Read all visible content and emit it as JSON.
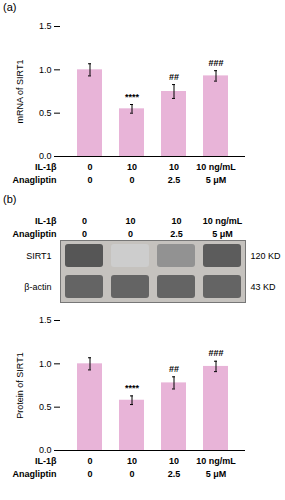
{
  "chart_data": [
    {
      "type": "bar",
      "title": "(a)",
      "ylabel": "mRNA of SIRT1",
      "category_rows": [
        {
          "name": "IL-1β",
          "labels": [
            "0",
            "10",
            "10",
            "10 ng/mL"
          ]
        },
        {
          "name": "Anagliptin",
          "labels": [
            "0",
            "0",
            "2.5",
            "5 μM"
          ]
        }
      ],
      "values": [
        1.0,
        0.55,
        0.75,
        0.93
      ],
      "errors": [
        0.07,
        0.05,
        0.08,
        0.06
      ],
      "color": "#e8b4d8",
      "ylim": [
        0,
        1.5
      ],
      "yticks": [
        {
          "value": 0,
          "label": "0.0"
        },
        0.5,
        {
          "value": 1.0,
          "label": "1.0"
        },
        1.5
      ],
      "annotations": [
        {
          "index": 1,
          "text": "****"
        },
        {
          "index": 2,
          "text": "##"
        },
        {
          "index": 3,
          "text": "###"
        }
      ]
    },
    {
      "type": "heatmap",
      "title": "(b)",
      "category_rows": [
        {
          "name": "IL-1β",
          "labels": [
            "0",
            "10",
            "10",
            "10 ng/mL"
          ]
        },
        {
          "name": "Anagliptin",
          "labels": [
            "0",
            "0",
            "2.5",
            "5 μM"
          ]
        }
      ],
      "series": [
        {
          "name": "SIRT1",
          "label": "120 KD",
          "values": [
            0.85,
            0.25,
            0.55,
            0.82
          ]
        },
        {
          "name": "β-actin",
          "label": "43 KD",
          "values": [
            0.78,
            0.78,
            0.78,
            0.78
          ]
        }
      ]
    },
    {
      "type": "bar",
      "ylabel": "Protein of SIRT1",
      "category_rows": [
        {
          "name": "IL-1β",
          "labels": [
            "0",
            "10",
            "10",
            "10 ng/mL"
          ]
        },
        {
          "name": "Anagliptin",
          "labels": [
            "0",
            "0",
            "2.5",
            "5 μM"
          ]
        }
      ],
      "values": [
        1.0,
        0.58,
        0.78,
        0.97
      ],
      "errors": [
        0.07,
        0.05,
        0.07,
        0.06
      ],
      "color": "#e8b4d8",
      "ylim": [
        0,
        1.5
      ],
      "yticks": [
        {
          "value": 0,
          "label": "0.0"
        },
        0.5,
        {
          "value": 1.0,
          "label": "1.0"
        },
        1.5
      ],
      "annotations": [
        {
          "index": 1,
          "text": "****"
        },
        {
          "index": 2,
          "text": "##"
        },
        {
          "index": 3,
          "text": "###"
        }
      ]
    }
  ]
}
